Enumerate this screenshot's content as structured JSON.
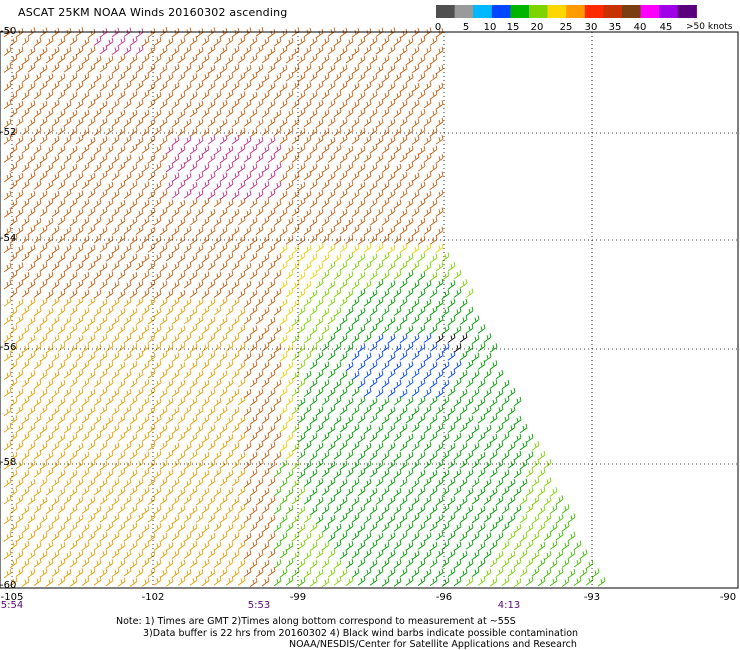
{
  "title": "ASCAT 25KM NOAA Winds 20160302 ascending",
  "colorbar": {
    "labels": [
      "0",
      "5",
      "10",
      "15",
      "20",
      "25",
      "30",
      "35",
      "40",
      "45",
      ">50 knots"
    ],
    "colors": [
      "#505050",
      "#9a9a9a",
      "#00b8ff",
      "#0046ff",
      "#00b400",
      "#7ed400",
      "#ffd700",
      "#ff9a00",
      "#ff2a00",
      "#c83200",
      "#7a3e12",
      "#ff00ff",
      "#a000e6",
      "#5a007a"
    ]
  },
  "chart_data": {
    "type": "wind-barb map",
    "lat_ticks": [
      "-50",
      "-52",
      "-54",
      "-56",
      "-58",
      "-60"
    ],
    "lon_ticks": [
      "-105",
      "-102",
      "-99",
      "-96",
      "-93",
      "-90"
    ],
    "times": [
      "5:54",
      "5:53",
      "4:13"
    ]
  },
  "notes": [
    "Note: 1) Times are GMT 2)Times along bottom correspond to measurement at ~55S",
    "3)Data buffer is 22 hrs from 20160302 4) Black wind barbs indicate possible contamination",
    "NOAA/NESDIS/Center for Satellite Applications and Research"
  ]
}
